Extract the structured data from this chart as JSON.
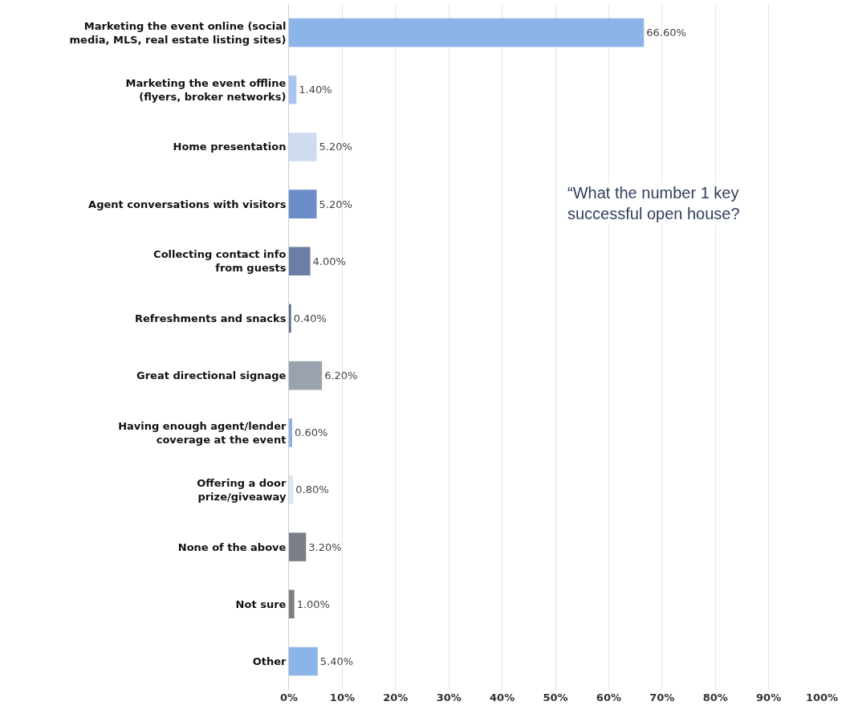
{
  "chart_data": {
    "type": "bar",
    "orientation": "horizontal",
    "categories": [
      "Marketing the event online (social\nmedia, MLS, real estate listing sites)",
      "Marketing the event offline\n(flyers, broker networks)",
      "Home presentation",
      "Agent conversations with visitors",
      "Collecting contact info\nfrom guests",
      "Refreshments and snacks",
      "Great directional signage",
      "Having enough agent/lender\ncoverage at the event",
      "Offering a door\nprize/giveaway",
      "None of the above",
      "Not sure",
      "Other"
    ],
    "values": [
      66.6,
      1.4,
      5.2,
      5.2,
      4.0,
      0.4,
      6.2,
      0.6,
      0.8,
      3.2,
      1.0,
      5.4
    ],
    "value_labels": [
      "66.60%",
      "1.40%",
      "5.20%",
      "5.20%",
      "4.00%",
      "0.40%",
      "6.20%",
      "0.60%",
      "0.80%",
      "3.20%",
      "1.00%",
      "5.40%"
    ],
    "colors": [
      "#8db4e8",
      "#aac6ee",
      "#cfdcf0",
      "#6a8cc8",
      "#6a7fa3",
      "#5f6f8a",
      "#9aa3ad",
      "#8fb0e6",
      "#dde6f2",
      "#7a7f86",
      "#7c7f83",
      "#8db4e8"
    ],
    "xlim": [
      0,
      100
    ],
    "xticks": [
      {
        "value": 0,
        "label": "0%"
      },
      {
        "value": 10,
        "label": "10%"
      },
      {
        "value": 20,
        "label": "20%"
      },
      {
        "value": 30,
        "label": "30%"
      },
      {
        "value": 40,
        "label": "40%"
      },
      {
        "value": 50,
        "label": "50%"
      },
      {
        "value": 60,
        "label": "60%"
      },
      {
        "value": 70,
        "label": "70%"
      },
      {
        "value": 80,
        "label": "80%"
      },
      {
        "value": 90,
        "label": "90%"
      },
      {
        "value": 100,
        "label": "100%"
      }
    ],
    "grid": "x",
    "annotations": [
      "“What the number 1 key\nsuccessful open house?"
    ]
  }
}
